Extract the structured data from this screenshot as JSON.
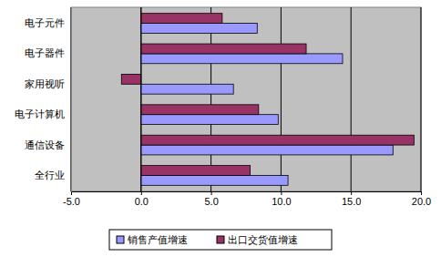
{
  "chart_data": {
    "type": "bar",
    "orientation": "horizontal",
    "categories": [
      "全行业",
      "通信设备",
      "电子计算机",
      "家用视听",
      "电子器件",
      "电子元件"
    ],
    "series": [
      {
        "name": "销售产值增速",
        "color": "#9999ff",
        "values": [
          10.5,
          18.0,
          9.8,
          6.6,
          14.4,
          8.3
        ]
      },
      {
        "name": "出口交货值增速",
        "color": "#993366",
        "values": [
          7.8,
          19.5,
          8.4,
          -1.4,
          11.8,
          5.8
        ]
      }
    ],
    "xlim": [
      -5,
      20
    ],
    "xticks": [
      {
        "value": -5,
        "label": "-5.0"
      },
      {
        "value": 0,
        "label": "0.0"
      },
      {
        "value": 5,
        "label": "5.0"
      },
      {
        "value": 10,
        "label": "10.0"
      },
      {
        "value": 15,
        "label": "15.0"
      },
      {
        "value": 20,
        "label": "20.0"
      }
    ],
    "grid": true,
    "legend": "bottom"
  }
}
